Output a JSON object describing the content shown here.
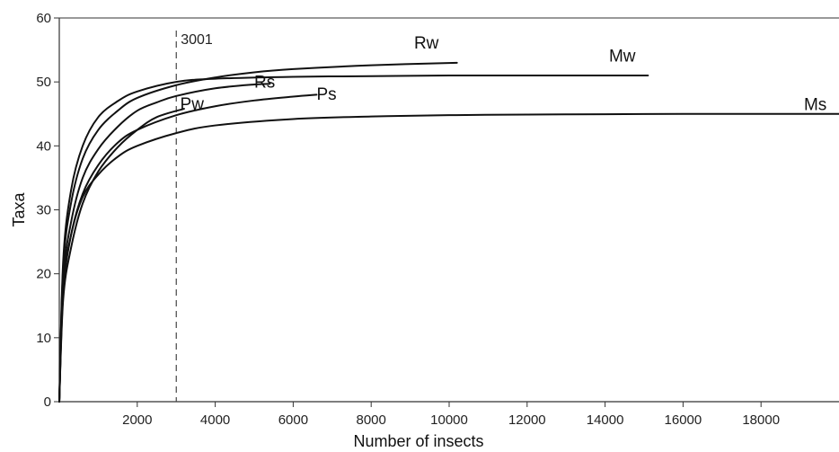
{
  "chart_data": {
    "type": "line",
    "xlabel": "Number of insects",
    "ylabel": "Taxa",
    "xlim": [
      0,
      20000
    ],
    "ylim": [
      0,
      60
    ],
    "x_ticks": [
      2000,
      4000,
      6000,
      8000,
      10000,
      12000,
      14000,
      16000,
      18000
    ],
    "y_ticks": [
      0,
      10,
      20,
      30,
      40,
      50,
      60
    ],
    "reference_line": {
      "x": 3001,
      "label": "3001",
      "style": "dashed"
    },
    "series": [
      {
        "name": "Rw",
        "x": [
          0,
          100,
          300,
          600,
          1000,
          1500,
          2000,
          3000,
          4000,
          5000,
          6000,
          8000,
          10200
        ],
        "y": [
          0,
          21,
          31,
          38,
          42.5,
          45.5,
          47.5,
          49.5,
          50.7,
          51.5,
          52.0,
          52.6,
          53
        ]
      },
      {
        "name": "Mw",
        "x": [
          0,
          100,
          300,
          600,
          1000,
          1500,
          2000,
          3000,
          4000,
          6000,
          8000,
          10000,
          12000,
          15100
        ],
        "y": [
          0,
          22,
          33,
          40,
          44.5,
          47,
          48.5,
          50.0,
          50.5,
          50.8,
          50.9,
          51,
          51,
          51
        ]
      },
      {
        "name": "Rs",
        "x": [
          0,
          100,
          300,
          600,
          1000,
          1500,
          2000,
          2500,
          3000,
          4000,
          5000,
          5400
        ],
        "y": [
          0,
          19,
          28,
          35,
          39.5,
          43,
          45.5,
          46.8,
          47.8,
          49.0,
          49.6,
          49.7
        ]
      },
      {
        "name": "Ps",
        "x": [
          0,
          100,
          300,
          600,
          1000,
          1500,
          2000,
          3000,
          4000,
          5000,
          6000,
          6600
        ],
        "y": [
          0,
          17,
          26,
          32.5,
          37,
          40.5,
          42.5,
          44.8,
          46.2,
          47.1,
          47.7,
          48
        ]
      },
      {
        "name": "Pw",
        "x": [
          0,
          100,
          300,
          600,
          1000,
          1500,
          2000,
          2500,
          3200
        ],
        "y": [
          0,
          16,
          24,
          31,
          36,
          39.8,
          42.5,
          44.5,
          45.8
        ]
      },
      {
        "name": "Ms",
        "x": [
          0,
          100,
          300,
          600,
          1000,
          1500,
          2000,
          3000,
          4000,
          6000,
          8000,
          10000,
          12000,
          14000,
          16000,
          18000,
          20000
        ],
        "y": [
          0,
          18,
          26,
          32,
          35.5,
          38.3,
          40,
          42,
          43.2,
          44.2,
          44.6,
          44.8,
          44.9,
          44.95,
          45,
          45,
          45
        ]
      }
    ],
    "series_label_positions": {
      "Rw": [
        9100,
        55.2
      ],
      "Mw": [
        14100,
        53.2
      ],
      "Rs": [
        5000,
        49.1
      ],
      "Ps": [
        6600,
        47.2
      ],
      "Pw": [
        3100,
        45.7
      ],
      "Ms": [
        19100,
        45.6
      ]
    },
    "grid": false,
    "legend": "none (labels at curve ends)"
  }
}
